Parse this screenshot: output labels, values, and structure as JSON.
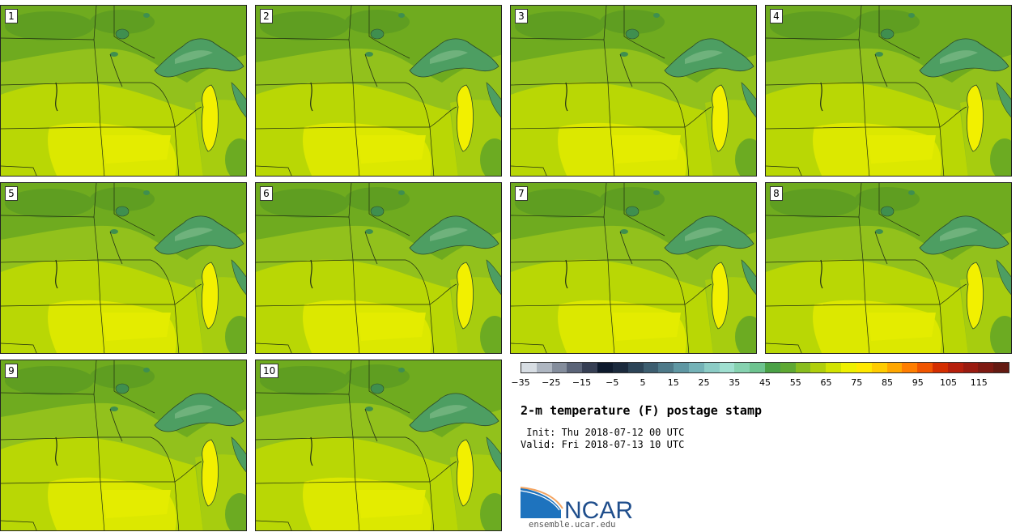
{
  "stamps": [
    {
      "label": "1"
    },
    {
      "label": "2"
    },
    {
      "label": "3"
    },
    {
      "label": "4"
    },
    {
      "label": "5"
    },
    {
      "label": "6"
    },
    {
      "label": "7"
    },
    {
      "label": "8"
    },
    {
      "label": "9"
    },
    {
      "label": "10"
    }
  ],
  "colorbar": {
    "colors": [
      "#d7dde3",
      "#aeb6c1",
      "#848d9c",
      "#5b6478",
      "#363f54",
      "#0e1a2d",
      "#1b2a3d",
      "#2c4457",
      "#3d5e70",
      "#4e7a89",
      "#5f97a3",
      "#74b2b7",
      "#8cccc6",
      "#9fdfd0",
      "#86d2b0",
      "#6dc38f",
      "#4aa146",
      "#5fa933",
      "#89bd1e",
      "#b0cf0c",
      "#d2e300",
      "#eef000",
      "#ffe800",
      "#ffcc00",
      "#ffa700",
      "#ff7e00",
      "#f05500",
      "#d42e00",
      "#b61f0c",
      "#9a1b10",
      "#7e1a12",
      "#641a12"
    ],
    "ticks": [
      "-35",
      "-25",
      "-15",
      "-5",
      "5",
      "15",
      "25",
      "35",
      "45",
      "55",
      "65",
      "75",
      "85",
      "95",
      "105",
      "115"
    ]
  },
  "title": "2-m temperature (F) postage stamp",
  "init_text": " Init: Thu 2018-07-12 00 UTC",
  "valid_text": "Valid: Fri 2018-07-13 10 UTC",
  "logo": {
    "text": "NCAR",
    "url": "ensemble.ucar.edu"
  }
}
